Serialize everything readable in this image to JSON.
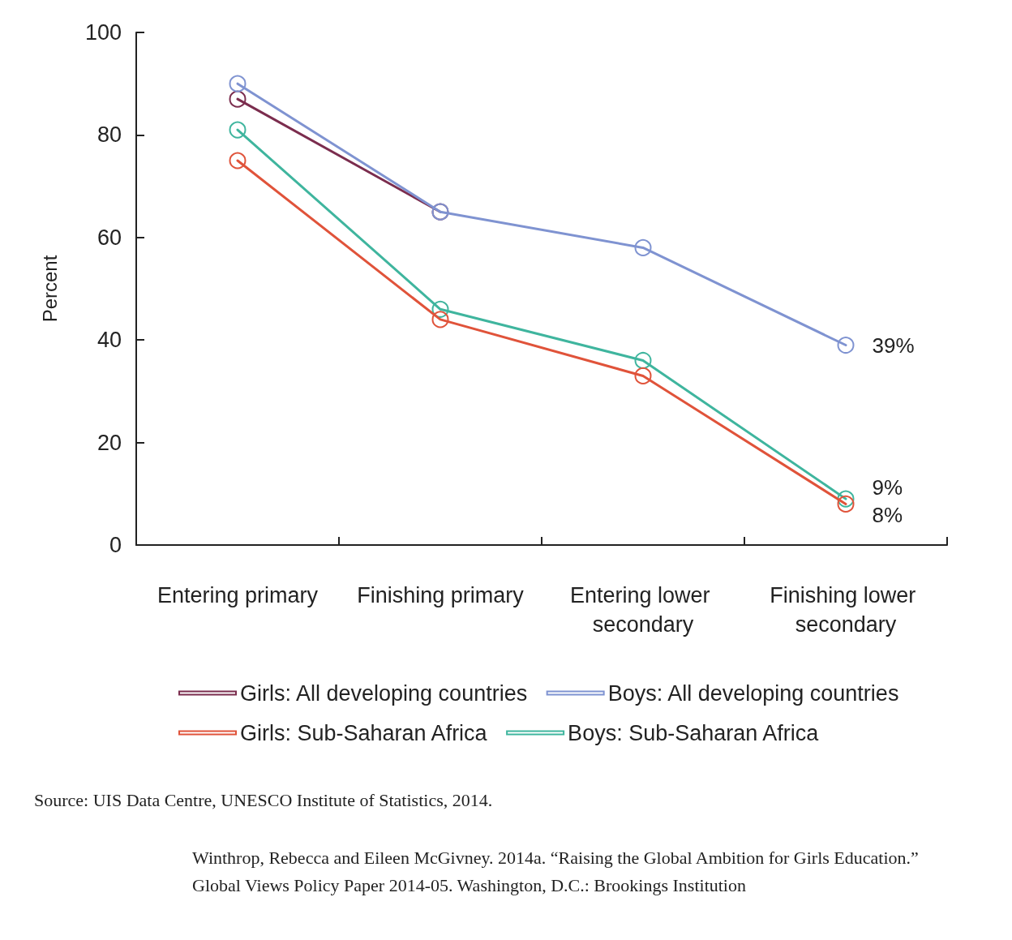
{
  "chart_data": {
    "type": "line",
    "categories": [
      "Entering primary",
      "Finishing primary",
      "Entering lower secondary",
      "Finishing lower secondary"
    ],
    "series": [
      {
        "name": "Girls: All developing countries",
        "color": "#7b2d4e",
        "values": [
          87,
          65,
          null,
          null
        ]
      },
      {
        "name": "Boys: All developing countries",
        "color": "#7f93d1",
        "values": [
          90,
          65,
          58,
          39
        ],
        "value_labels": [
          null,
          null,
          null,
          "39%"
        ]
      },
      {
        "name": "Girls: Sub-Saharan Africa",
        "color": "#e0533a",
        "values": [
          75,
          44,
          33,
          8
        ],
        "value_labels": [
          null,
          null,
          null,
          "8%"
        ]
      },
      {
        "name": "Boys: Sub-Saharan Africa",
        "color": "#3fb59e",
        "values": [
          81,
          46,
          36,
          9
        ],
        "value_labels": [
          null,
          null,
          null,
          "9%"
        ]
      }
    ],
    "ylabel": "Percent",
    "ylim": [
      0,
      100
    ],
    "yticks": [
      0,
      20,
      40,
      60,
      80,
      100
    ],
    "grid": false,
    "legend": "bottom",
    "marker": "circle",
    "line_style": "solid",
    "annotations": [
      "Source: UIS Data Centre, UNESCO Institute of Statistics, 2014.",
      "Winthrop, Rebecca and Eileen McGivney. 2014a. “Raising the Global Ambition for Girls Education.” Global Views Policy Paper 2014-05. Washington, D.C.: Brookings Institution"
    ]
  }
}
